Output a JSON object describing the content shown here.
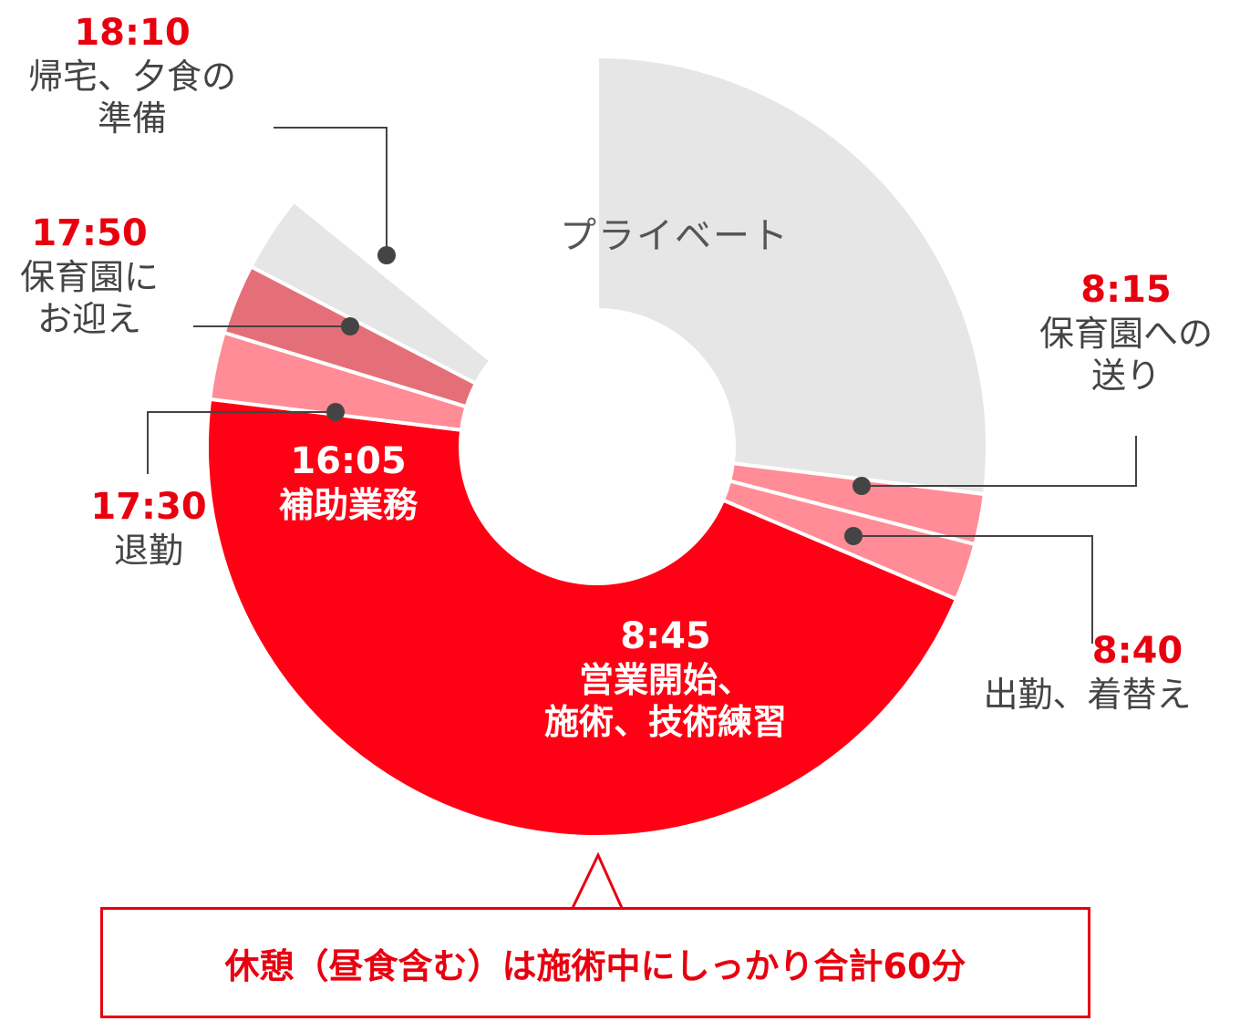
{
  "chart_data": {
    "type": "donut",
    "segments": [
      {
        "name": "プライベート",
        "time": "",
        "start_deg": 0,
        "end_deg": 97,
        "color": "#e6e6e6"
      },
      {
        "name": "保育園への送り",
        "time": "8:15",
        "start_deg": 97,
        "end_deg": 104.5,
        "color": "#ff8c96"
      },
      {
        "name": "出勤、着替え",
        "time": "8:40",
        "start_deg": 104.5,
        "end_deg": 113,
        "color": "#ff8c96"
      },
      {
        "name": "営業開始、施術、技術練習",
        "time": "8:45",
        "start_deg": 113,
        "end_deg": 277,
        "color": "#ff0014"
      },
      {
        "name": "補助業務",
        "time": "16:05",
        "start_deg": 277,
        "end_deg": 287,
        "color": "#ff8c96"
      },
      {
        "name": "退勤",
        "time": "17:30",
        "start_deg": 287,
        "end_deg": 297.5,
        "color": "#e56f78"
      },
      {
        "name": "帰宅、夕食の準備",
        "time": "18:10",
        "start_deg": 297.5,
        "end_deg": 309,
        "color": "#e6e6e6"
      }
    ]
  },
  "labels": {
    "private": "プライベート",
    "t1_time": "18:10",
    "t1_act1": "帰宅、夕食の",
    "t1_act2": "準備",
    "t2_time": "17:50",
    "t2_act1": "保育園に",
    "t2_act2": "お迎え",
    "t3_time": "17:30",
    "t3_act": "退勤",
    "t4_time": "16:05",
    "t4_act": "補助業務",
    "t5_time": "8:45",
    "t5_act1": "営業開始、",
    "t5_act2": "施術、技術練習",
    "t6_time": "8:15",
    "t6_act1": "保育園への",
    "t6_act2": "送り",
    "t7_time": "8:40",
    "t7_act": "出勤、着替え"
  },
  "note": "休憩（昼食含む）は施術中にしっかり合計60分"
}
